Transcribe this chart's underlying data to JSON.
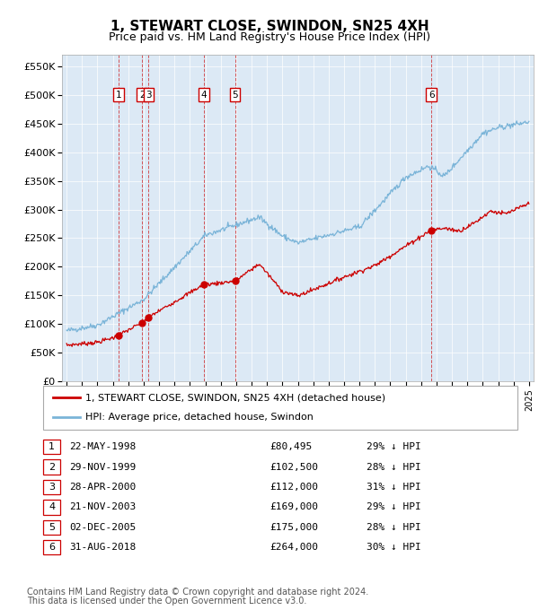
{
  "title": "1, STEWART CLOSE, SWINDON, SN25 4XH",
  "subtitle": "Price paid vs. HM Land Registry's House Price Index (HPI)",
  "background_color": "#dce9f5",
  "hpi_color": "#7ab4d8",
  "price_color": "#cc0000",
  "ylim": [
    0,
    570000
  ],
  "yticks": [
    0,
    50000,
    100000,
    150000,
    200000,
    250000,
    300000,
    350000,
    400000,
    450000,
    500000,
    550000
  ],
  "ytick_labels": [
    "£0",
    "£50K",
    "£100K",
    "£150K",
    "£200K",
    "£250K",
    "£300K",
    "£350K",
    "£400K",
    "£450K",
    "£500K",
    "£550K"
  ],
  "sales": [
    {
      "label": "1",
      "date": "22-MAY-1998",
      "year": 1998.38,
      "price": 80495,
      "hpi_pct": "29%"
    },
    {
      "label": "2",
      "date": "29-NOV-1999",
      "year": 1999.91,
      "price": 102500,
      "hpi_pct": "28%"
    },
    {
      "label": "3",
      "date": "28-APR-2000",
      "year": 2000.32,
      "price": 112000,
      "hpi_pct": "31%"
    },
    {
      "label": "4",
      "date": "21-NOV-2003",
      "year": 2003.89,
      "price": 169000,
      "hpi_pct": "29%"
    },
    {
      "label": "5",
      "date": "02-DEC-2005",
      "year": 2005.92,
      "price": 175000,
      "hpi_pct": "28%"
    },
    {
      "label": "6",
      "date": "31-AUG-2018",
      "year": 2018.66,
      "price": 264000,
      "hpi_pct": "30%"
    }
  ],
  "legend_line1": "1, STEWART CLOSE, SWINDON, SN25 4XH (detached house)",
  "legend_line2": "HPI: Average price, detached house, Swindon",
  "footer1": "Contains HM Land Registry data © Crown copyright and database right 2024.",
  "footer2": "This data is licensed under the Open Government Licence v3.0."
}
